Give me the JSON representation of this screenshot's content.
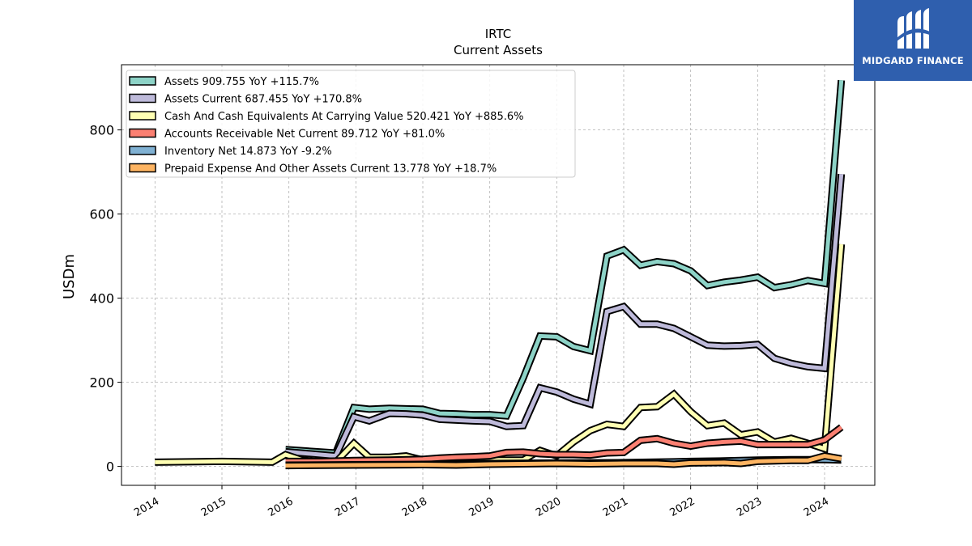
{
  "brand": {
    "name": "MIDGARD FINANCE",
    "color": "#2f5fae"
  },
  "chart_data": {
    "type": "line",
    "title": "IRTC",
    "subtitle": "Current  Assets",
    "ylabel": "USDm",
    "xlabel": "",
    "xlim": [
      2013.5,
      2024.75
    ],
    "ylim": [
      -45,
      955
    ],
    "yticks": [
      0,
      200,
      400,
      600,
      800
    ],
    "xticks": [
      "2014",
      "2015",
      "2016",
      "2017",
      "2018",
      "2019",
      "2020",
      "2021",
      "2022",
      "2023",
      "2024"
    ],
    "grid": true,
    "legend_position": "top-left",
    "series": [
      {
        "name": "Assets  909.755 YoY +115.7%",
        "color": "#8dd3c7",
        "points": [
          [
            2015.95,
            40
          ],
          [
            2016.7,
            32
          ],
          [
            2016.97,
            140
          ],
          [
            2017.2,
            136
          ],
          [
            2017.5,
            138
          ],
          [
            2017.75,
            137
          ],
          [
            2018.0,
            136
          ],
          [
            2018.25,
            126
          ],
          [
            2018.5,
            125
          ],
          [
            2018.75,
            123
          ],
          [
            2019.0,
            123
          ],
          [
            2019.25,
            120
          ],
          [
            2019.5,
            210
          ],
          [
            2019.75,
            310
          ],
          [
            2020.0,
            308
          ],
          [
            2020.25,
            285
          ],
          [
            2020.5,
            275
          ],
          [
            2020.75,
            500
          ],
          [
            2021.0,
            515
          ],
          [
            2021.25,
            478
          ],
          [
            2021.5,
            487
          ],
          [
            2021.75,
            482
          ],
          [
            2022.0,
            465
          ],
          [
            2022.25,
            430
          ],
          [
            2022.5,
            438
          ],
          [
            2022.75,
            443
          ],
          [
            2023.0,
            450
          ],
          [
            2023.25,
            425
          ],
          [
            2023.5,
            432
          ],
          [
            2023.75,
            442
          ],
          [
            2024.0,
            435
          ],
          [
            2024.25,
            918
          ]
        ]
      },
      {
        "name": "Assets Current  687.455 YoY +170.8%",
        "color": "#bebada",
        "points": [
          [
            2015.95,
            35
          ],
          [
            2016.7,
            25
          ],
          [
            2016.97,
            118
          ],
          [
            2017.2,
            108
          ],
          [
            2017.5,
            126
          ],
          [
            2017.75,
            125
          ],
          [
            2018.0,
            122
          ],
          [
            2018.25,
            112
          ],
          [
            2018.5,
            110
          ],
          [
            2018.75,
            108
          ],
          [
            2019.0,
            107
          ],
          [
            2019.25,
            95
          ],
          [
            2019.5,
            97
          ],
          [
            2019.75,
            187
          ],
          [
            2020.0,
            177
          ],
          [
            2020.25,
            160
          ],
          [
            2020.5,
            148
          ],
          [
            2020.75,
            368
          ],
          [
            2021.0,
            380
          ],
          [
            2021.25,
            338
          ],
          [
            2021.5,
            338
          ],
          [
            2021.75,
            328
          ],
          [
            2022.0,
            308
          ],
          [
            2022.25,
            288
          ],
          [
            2022.5,
            286
          ],
          [
            2022.75,
            287
          ],
          [
            2023.0,
            290
          ],
          [
            2023.25,
            257
          ],
          [
            2023.5,
            245
          ],
          [
            2023.75,
            237
          ],
          [
            2024.0,
            233
          ],
          [
            2024.25,
            695
          ]
        ]
      },
      {
        "name": "Cash And Cash Equivalents At Carrying Value  520.421 YoY +885.6%",
        "color": "#ffffb3",
        "points": [
          [
            2014.0,
            10
          ],
          [
            2015.0,
            12
          ],
          [
            2015.75,
            10
          ],
          [
            2015.95,
            28
          ],
          [
            2016.2,
            15
          ],
          [
            2016.5,
            10
          ],
          [
            2016.7,
            10
          ],
          [
            2016.97,
            55
          ],
          [
            2017.2,
            22
          ],
          [
            2017.5,
            22
          ],
          [
            2017.75,
            25
          ],
          [
            2018.0,
            15
          ],
          [
            2018.25,
            15
          ],
          [
            2018.5,
            15
          ],
          [
            2018.75,
            15
          ],
          [
            2019.0,
            15
          ],
          [
            2019.25,
            15
          ],
          [
            2019.5,
            15
          ],
          [
            2019.75,
            38
          ],
          [
            2020.0,
            25
          ],
          [
            2020.25,
            58
          ],
          [
            2020.5,
            85
          ],
          [
            2020.75,
            100
          ],
          [
            2021.0,
            95
          ],
          [
            2021.25,
            140
          ],
          [
            2021.5,
            142
          ],
          [
            2021.75,
            172
          ],
          [
            2022.0,
            130
          ],
          [
            2022.25,
            97
          ],
          [
            2022.5,
            103
          ],
          [
            2022.75,
            75
          ],
          [
            2023.0,
            82
          ],
          [
            2023.25,
            58
          ],
          [
            2023.5,
            67
          ],
          [
            2023.75,
            55
          ],
          [
            2024.0,
            42
          ],
          [
            2024.25,
            528
          ]
        ]
      },
      {
        "name": "Accounts Receivable Net Current  89.712 YoY +81.0%",
        "color": "#fb8072",
        "points": [
          [
            2015.95,
            12
          ],
          [
            2016.5,
            12
          ],
          [
            2016.97,
            14
          ],
          [
            2017.5,
            15
          ],
          [
            2018.0,
            17
          ],
          [
            2018.25,
            20
          ],
          [
            2018.5,
            22
          ],
          [
            2018.75,
            23
          ],
          [
            2019.0,
            25
          ],
          [
            2019.25,
            33
          ],
          [
            2019.5,
            34
          ],
          [
            2019.75,
            30
          ],
          [
            2020.0,
            28
          ],
          [
            2020.25,
            28
          ],
          [
            2020.5,
            27
          ],
          [
            2020.75,
            32
          ],
          [
            2021.0,
            33
          ],
          [
            2021.25,
            62
          ],
          [
            2021.5,
            66
          ],
          [
            2021.75,
            55
          ],
          [
            2022.0,
            48
          ],
          [
            2022.25,
            55
          ],
          [
            2022.5,
            58
          ],
          [
            2022.75,
            60
          ],
          [
            2023.0,
            52
          ],
          [
            2023.25,
            52
          ],
          [
            2023.5,
            52
          ],
          [
            2023.75,
            52
          ],
          [
            2024.0,
            63
          ],
          [
            2024.25,
            93
          ]
        ]
      },
      {
        "name": "Inventory Net  14.873 YoY -9.2%",
        "color": "#80b1d3",
        "points": [
          [
            2015.95,
            3
          ],
          [
            2016.97,
            4
          ],
          [
            2018.0,
            5
          ],
          [
            2019.0,
            7
          ],
          [
            2020.0,
            8
          ],
          [
            2021.0,
            9
          ],
          [
            2021.75,
            11
          ],
          [
            2022.0,
            12
          ],
          [
            2022.5,
            13
          ],
          [
            2023.0,
            15
          ],
          [
            2023.5,
            16
          ],
          [
            2024.0,
            16
          ],
          [
            2024.25,
            15
          ]
        ]
      },
      {
        "name": "Prepaid Expense And Other Assets Current  13.778 YoY +18.7%",
        "color": "#fdb462",
        "points": [
          [
            2015.95,
            2
          ],
          [
            2016.97,
            3
          ],
          [
            2018.0,
            4
          ],
          [
            2018.5,
            3
          ],
          [
            2019.0,
            5
          ],
          [
            2019.5,
            6
          ],
          [
            2020.0,
            7
          ],
          [
            2020.5,
            6
          ],
          [
            2021.0,
            7
          ],
          [
            2021.5,
            7
          ],
          [
            2021.75,
            5
          ],
          [
            2022.0,
            8
          ],
          [
            2022.5,
            9
          ],
          [
            2022.75,
            7
          ],
          [
            2023.0,
            12
          ],
          [
            2023.5,
            14
          ],
          [
            2023.75,
            14
          ],
          [
            2024.0,
            25
          ],
          [
            2024.25,
            18
          ]
        ]
      }
    ]
  }
}
